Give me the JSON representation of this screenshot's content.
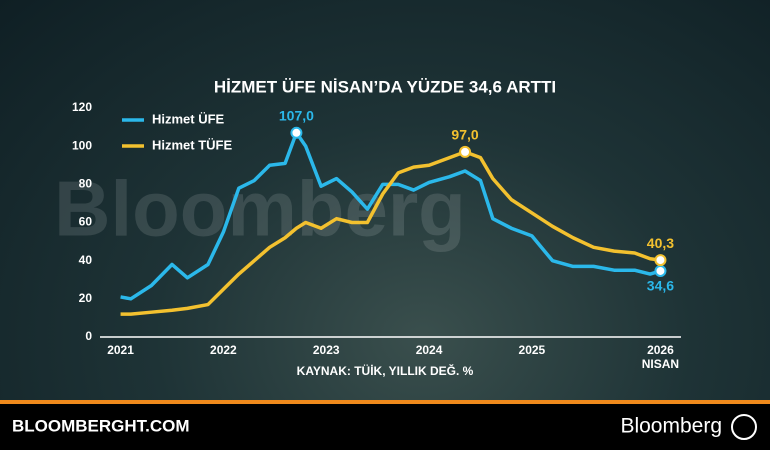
{
  "chart_data": {
    "type": "line",
    "title": "HİZMET ÜFE NİSAN’DA YÜZDE 34,6 ARTTI",
    "source": "KAYNAK: TÜİK, YILLIK DEĞ. %",
    "watermark": "Bloomberg",
    "footer_left": "BLOOMBERGHT.COM",
    "footer_right": "Bloomberg",
    "x": [
      2021.0,
      2021.1,
      2021.3,
      2021.5,
      2021.65,
      2021.85,
      2022.0,
      2022.15,
      2022.3,
      2022.45,
      2022.6,
      2022.71,
      2022.8,
      2022.95,
      2023.1,
      2023.25,
      2023.4,
      2023.55,
      2023.7,
      2023.85,
      2024.0,
      2024.2,
      2024.35,
      2024.5,
      2024.62,
      2024.8,
      2025.0,
      2025.2,
      2025.4,
      2025.6,
      2025.8,
      2026.0,
      2026.15,
      2026.25
    ],
    "series": [
      {
        "name": "Hizmet ÜFE",
        "color": "#2bb8ea",
        "values": [
          21,
          20,
          27,
          38,
          31,
          38,
          55,
          78,
          82,
          90,
          91,
          107,
          100,
          79,
          83,
          76,
          67,
          80,
          80,
          77,
          81,
          84,
          87,
          82,
          62,
          57,
          53,
          40,
          37,
          37,
          35,
          35,
          33,
          34.6
        ],
        "value_labels": [
          null,
          null,
          null,
          null,
          null,
          null,
          null,
          null,
          null,
          null,
          null,
          "107,0",
          null,
          null,
          null,
          null,
          null,
          null,
          null,
          null,
          null,
          null,
          null,
          null,
          null,
          null,
          null,
          null,
          null,
          null,
          null,
          null,
          null,
          "34,6"
        ]
      },
      {
        "name": "Hizmet TÜFE",
        "color": "#f3c12f",
        "values": [
          12,
          12,
          13,
          14,
          15,
          17,
          25,
          33,
          40,
          47,
          52,
          57,
          60,
          57,
          62,
          60,
          60,
          75,
          86,
          89,
          90,
          94,
          97,
          94,
          83,
          72,
          65,
          58,
          52,
          47,
          45,
          44,
          41,
          40.3
        ],
        "value_labels": [
          null,
          null,
          null,
          null,
          null,
          null,
          null,
          null,
          null,
          null,
          null,
          null,
          null,
          null,
          null,
          null,
          null,
          null,
          null,
          null,
          null,
          null,
          "97,0",
          null,
          null,
          null,
          null,
          null,
          null,
          null,
          null,
          null,
          null,
          "40,3"
        ]
      }
    ],
    "xlim": [
      2020.8,
      2026.45
    ],
    "xticks": [
      2021,
      2022,
      2023,
      2024,
      2025,
      {
        "value": 2026.25,
        "label": "2026\nNISAN"
      }
    ],
    "ylim": [
      0,
      120
    ],
    "yticks": [
      0,
      20,
      40,
      60,
      80,
      100,
      120
    ],
    "grid": false
  }
}
